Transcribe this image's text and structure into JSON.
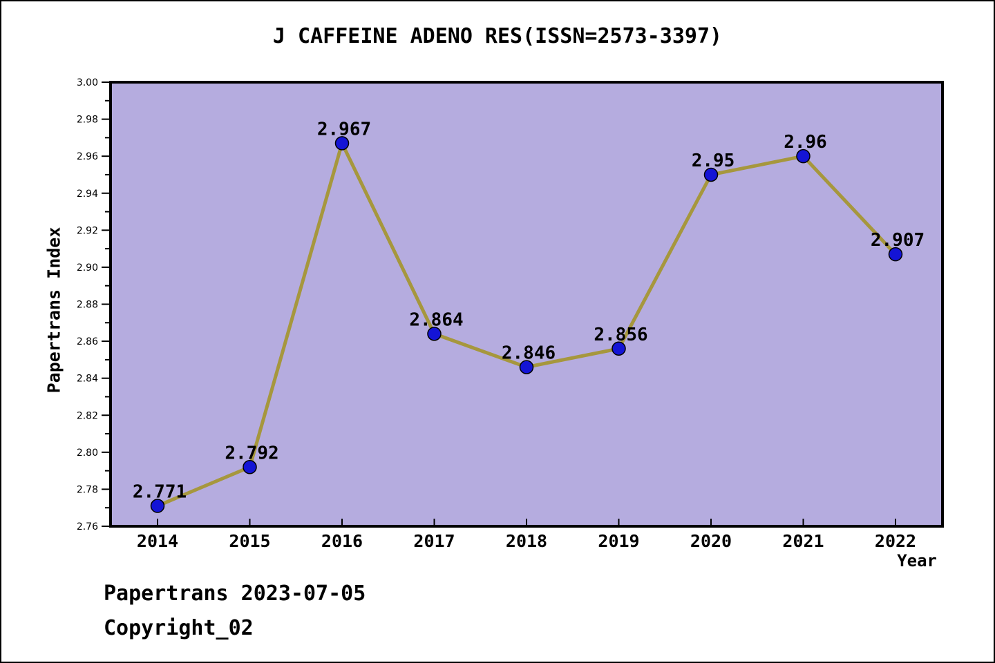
{
  "footer": {
    "line1": "Papertrans 2023-07-05",
    "line2": "Copyright_02"
  },
  "chart_data": {
    "type": "line",
    "title": "J CAFFEINE ADENO RES(ISSN=2573-3397)",
    "xlabel": "Year",
    "ylabel": "Papertrans Index",
    "categories": [
      "2014",
      "2015",
      "2016",
      "2017",
      "2018",
      "2019",
      "2020",
      "2021",
      "2022"
    ],
    "series": [
      {
        "name": "Papertrans Index",
        "values": [
          2.771,
          2.792,
          2.967,
          2.864,
          2.846,
          2.856,
          2.95,
          2.96,
          2.907
        ],
        "point_labels": [
          "2.771",
          "2.792",
          "2.967",
          "2.864",
          "2.846",
          "2.856",
          "2.95",
          "2.96",
          "2.907"
        ]
      }
    ],
    "ylim": [
      2.76,
      3.0
    ],
    "ytick_labels": [
      "3.00",
      "2.98",
      "2.96",
      "2.94",
      "2.92",
      "2.90",
      "2.88",
      "2.86",
      "2.84",
      "2.82",
      "2.80",
      "2.78",
      "2.76"
    ],
    "ytick_minor_step": 0.01,
    "grid": false,
    "legend_position": "none",
    "colors": {
      "plot_background": "#b5acdf",
      "line": "#a6973d",
      "marker": "#1414d6",
      "marker_edge": "#000000",
      "frame": "#000000",
      "text": "#000000",
      "outer_background": "#ffffff"
    }
  }
}
